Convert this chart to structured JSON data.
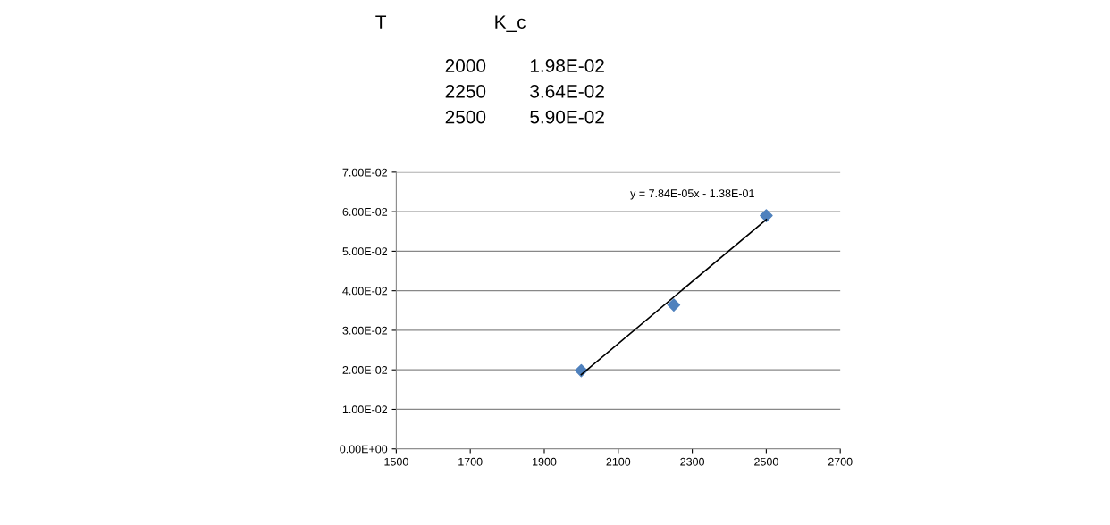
{
  "chart_data": {
    "type": "scatter",
    "series": [
      {
        "color": "#4f81bd",
        "marker": "diamond",
        "x": [
          2000,
          2250,
          2500
        ],
        "values": [
          0.0198,
          0.0364,
          0.059
        ]
      },
      {
        "type": "line",
        "color": "#000000",
        "marker": "none",
        "x": [
          2000,
          2500
        ],
        "values": [
          0.0188,
          0.058
        ]
      }
    ],
    "annotations": [
      "y = 7.84E-05x - 1.38E-01",
      "T",
      "K_c",
      "2000",
      "1.98E-02",
      "2250",
      "3.64E-02",
      "2500",
      "5.90E-02"
    ],
    "xlim": [
      1500,
      2700
    ],
    "xticks": [
      1500,
      1700,
      1900,
      2100,
      2300,
      2500,
      2700
    ],
    "ylim": [
      0,
      0.07
    ],
    "yticks": [
      {
        "value": 0,
        "label": "0.00E+00"
      },
      {
        "value": 0.01,
        "label": "1.00E-02"
      },
      {
        "value": 0.02,
        "label": "2.00E-02"
      },
      {
        "value": 0.03,
        "label": "3.00E-02"
      },
      {
        "value": 0.04,
        "label": "4.00E-02"
      },
      {
        "value": 0.05,
        "label": "5.00E-02"
      },
      {
        "value": 0.06,
        "label": "6.00E-02"
      },
      {
        "value": 0.07,
        "label": "7.00E-02"
      }
    ],
    "grid": "y",
    "legend": false
  }
}
